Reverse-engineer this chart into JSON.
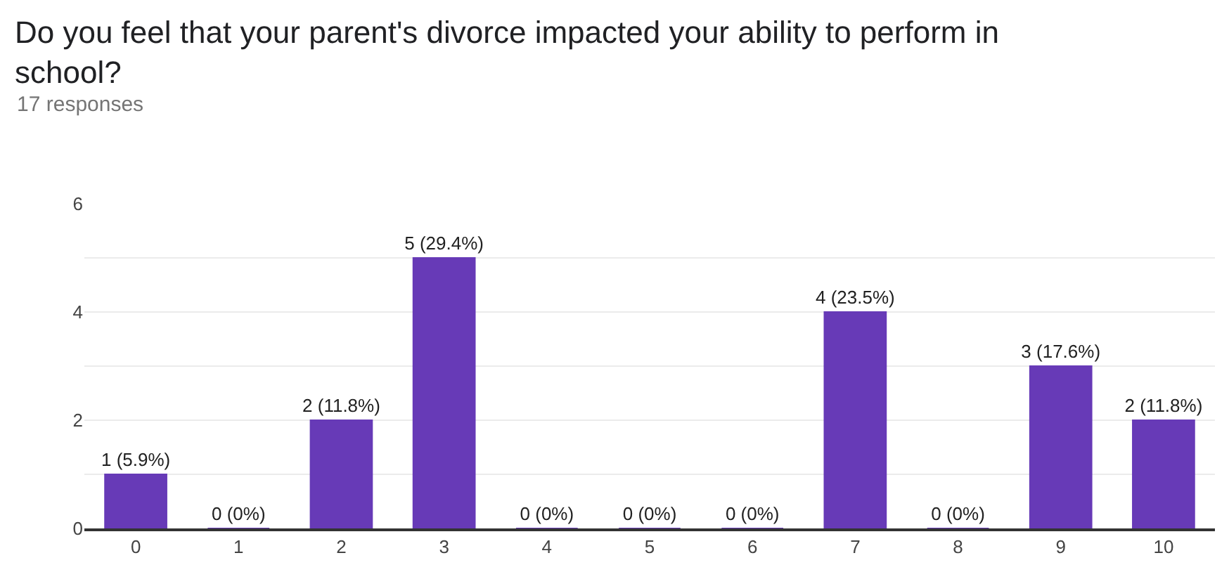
{
  "chart_data": {
    "type": "bar",
    "title": "Do you feel that your parent's divorce impacted your ability to perform in school?",
    "subtitle": "17 responses",
    "categories": [
      "0",
      "1",
      "2",
      "3",
      "4",
      "5",
      "6",
      "7",
      "8",
      "9",
      "10"
    ],
    "values": [
      1,
      0,
      2,
      5,
      0,
      0,
      0,
      4,
      0,
      3,
      2
    ],
    "value_labels": [
      "1 (5.9%)",
      "0 (0%)",
      "2 (11.8%)",
      "5 (29.4%)",
      "0 (0%)",
      "0 (0%)",
      "0 (0%)",
      "4 (23.5%)",
      "0 (0%)",
      "3 (17.6%)",
      "2 (11.8%)"
    ],
    "color": "#673ab7",
    "ylim": [
      0,
      6
    ],
    "yticks": [
      0,
      {
        "value": 1,
        "label": null
      },
      2,
      {
        "value": 3,
        "label": null
      },
      4,
      {
        "value": 5,
        "label": null
      },
      6
    ],
    "grid": "y",
    "legend": false
  }
}
